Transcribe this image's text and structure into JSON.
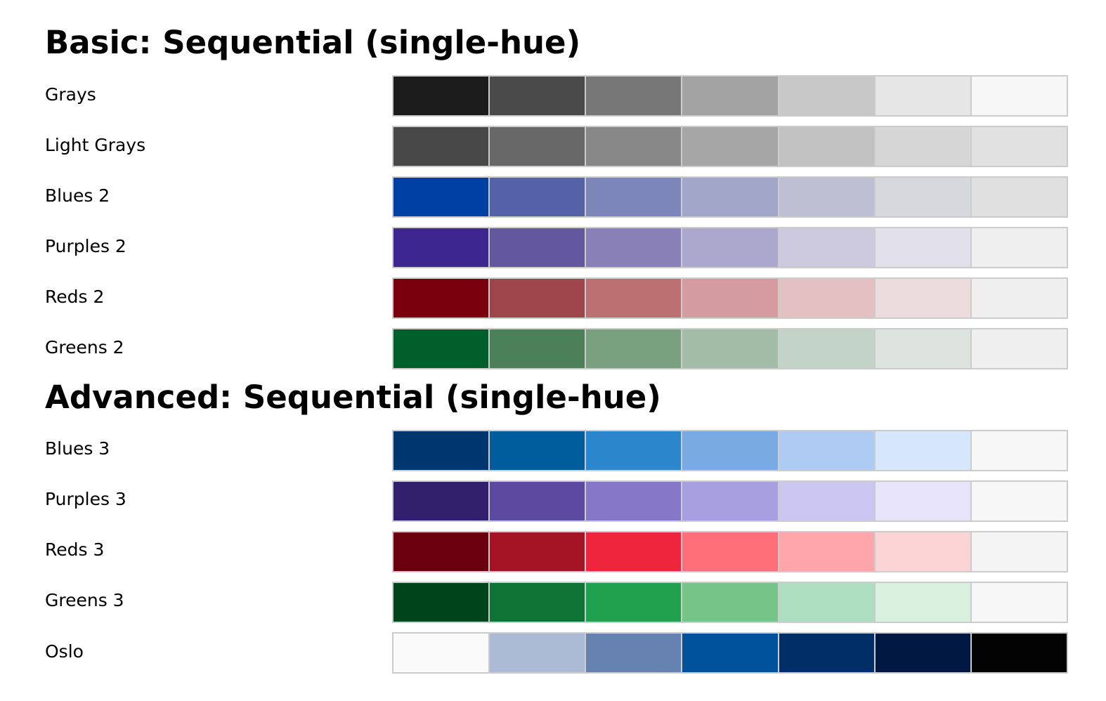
{
  "sections": [
    {
      "title": "Basic: Sequential (single-hue)",
      "palettes": [
        {
          "name": "Grays",
          "colors": [
            "#1c1c1c",
            "#4a4a4a",
            "#777777",
            "#a3a3a3",
            "#c8c8c8",
            "#e6e6e6",
            "#f7f7f7"
          ]
        },
        {
          "name": "Light Grays",
          "colors": [
            "#484848",
            "#686868",
            "#888888",
            "#a6a6a6",
            "#c2c2c2",
            "#d6d6d6",
            "#e1e1e1"
          ]
        },
        {
          "name": "Blues 2",
          "colors": [
            "#003fa3",
            "#5462a8",
            "#7c86b8",
            "#a2a6c9",
            "#bdc0d2",
            "#d7d8dd",
            "#e0e0e0"
          ]
        },
        {
          "name": "Purples 2",
          "colors": [
            "#3d2690",
            "#63589f",
            "#8980b8",
            "#aba7cd",
            "#ccc8de",
            "#e2e0ea",
            "#efefef"
          ]
        },
        {
          "name": "Reds 2",
          "colors": [
            "#7b000e",
            "#9d454a",
            "#bb7172",
            "#d49c9e",
            "#e3c1c3",
            "#ecdcdd",
            "#efefef"
          ]
        },
        {
          "name": "Greens 2",
          "colors": [
            "#005f2a",
            "#4c8058",
            "#7aa17f",
            "#a3bca7",
            "#c3d3c7",
            "#dde3df",
            "#efefef"
          ]
        }
      ]
    },
    {
      "title": "Advanced: Sequential (single-hue)",
      "palettes": [
        {
          "name": "Blues 3",
          "colors": [
            "#00366e",
            "#005d9c",
            "#2c86cb",
            "#79abe2",
            "#adcbf3",
            "#d6e6fd",
            "#f7f7f7"
          ]
        },
        {
          "name": "Purples 3",
          "colors": [
            "#33206c",
            "#5b4a9f",
            "#8576c8",
            "#a89fe1",
            "#cbc5f2",
            "#e6e3fb",
            "#f7f7f7"
          ]
        },
        {
          "name": "Reds 3",
          "colors": [
            "#6a000d",
            "#a51424",
            "#ee253c",
            "#ff6f7a",
            "#ffa6ab",
            "#fdd4d6",
            "#f4f4f4"
          ]
        },
        {
          "name": "Greens 3",
          "colors": [
            "#00441b",
            "#0e7335",
            "#21a04d",
            "#77c488",
            "#addec0",
            "#d9f0df",
            "#f7f7f7"
          ]
        },
        {
          "name": "Oslo",
          "colors": [
            "#fafafa",
            "#abbad5",
            "#6682b1",
            "#00529c",
            "#002f67",
            "#001842",
            "#030303"
          ]
        }
      ]
    }
  ]
}
